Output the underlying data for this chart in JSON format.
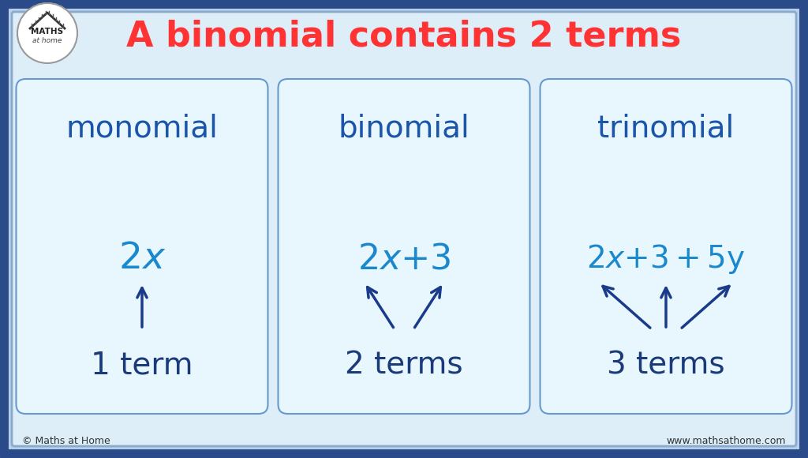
{
  "title": "A binomial contains 2 terms",
  "title_color": "#ff3333",
  "title_fontsize": 32,
  "outer_bg_color": "#b8cfe8",
  "inner_bg_color": "#ddeef8",
  "outer_border_color": "#2a4a8a",
  "outer_border_color2": "#8aaace",
  "card_bg_color": "#e8f7fd",
  "card_border_color": "#6699cc",
  "heading_color": "#1a55aa",
  "expr_color": "#1a88cc",
  "terms_color": "#1a3a7a",
  "arrow_color": "#1a3a8a",
  "cards": [
    {
      "title": "monomial",
      "terms_label": "1 term",
      "arrow_type": "single_up"
    },
    {
      "title": "binomial",
      "terms_label": "2 terms",
      "arrow_type": "v_shape"
    },
    {
      "title": "trinomial",
      "terms_label": "3 terms",
      "arrow_type": "fan_3"
    }
  ],
  "copyright": "© Maths at Home",
  "website": "www.mathsathome.com"
}
